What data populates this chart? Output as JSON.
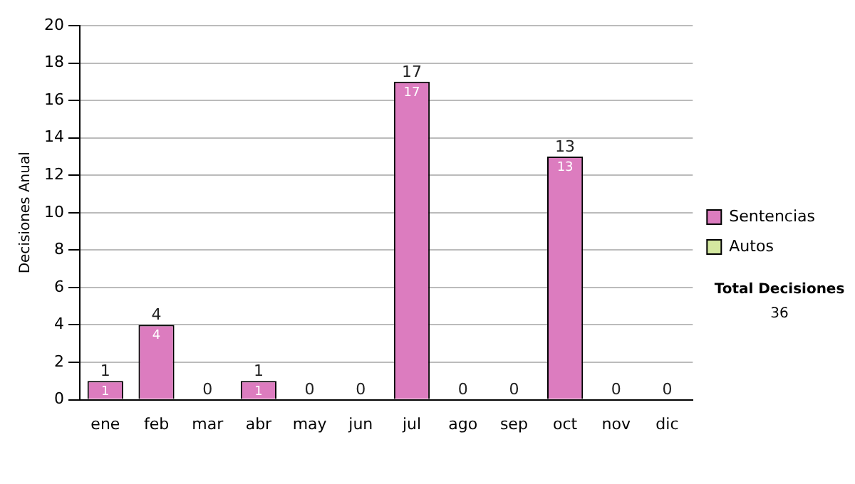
{
  "chart_data": {
    "type": "bar",
    "stacked": true,
    "ylabel": "Decisiones Anual",
    "categories": [
      "ene",
      "feb",
      "mar",
      "abr",
      "may",
      "jun",
      "jul",
      "ago",
      "sep",
      "oct",
      "nov",
      "dic"
    ],
    "series": [
      {
        "name": "Sentencias",
        "color": "#dc7cbf",
        "values": [
          1,
          4,
          0,
          1,
          0,
          0,
          17,
          0,
          0,
          13,
          0,
          0
        ],
        "value_labels": [
          "1",
          "4",
          null,
          "1",
          null,
          null,
          "17",
          null,
          null,
          "13",
          null,
          null
        ]
      },
      {
        "name": "Autos",
        "color": "#d4e8a0",
        "values": [
          0,
          0,
          0,
          0,
          0,
          0,
          0,
          0,
          0,
          0,
          0,
          0
        ]
      }
    ],
    "totals": [
      "1",
      "4",
      "0",
      "1",
      "0",
      "0",
      "17",
      "0",
      "0",
      "13",
      "0",
      "0"
    ],
    "ylim": [
      0,
      20
    ],
    "yticks": [
      0,
      2,
      4,
      6,
      8,
      10,
      12,
      14,
      16,
      18,
      20
    ],
    "grid": "y",
    "legend": "right",
    "annotations": [
      "Total Decisiones",
      "36"
    ]
  }
}
